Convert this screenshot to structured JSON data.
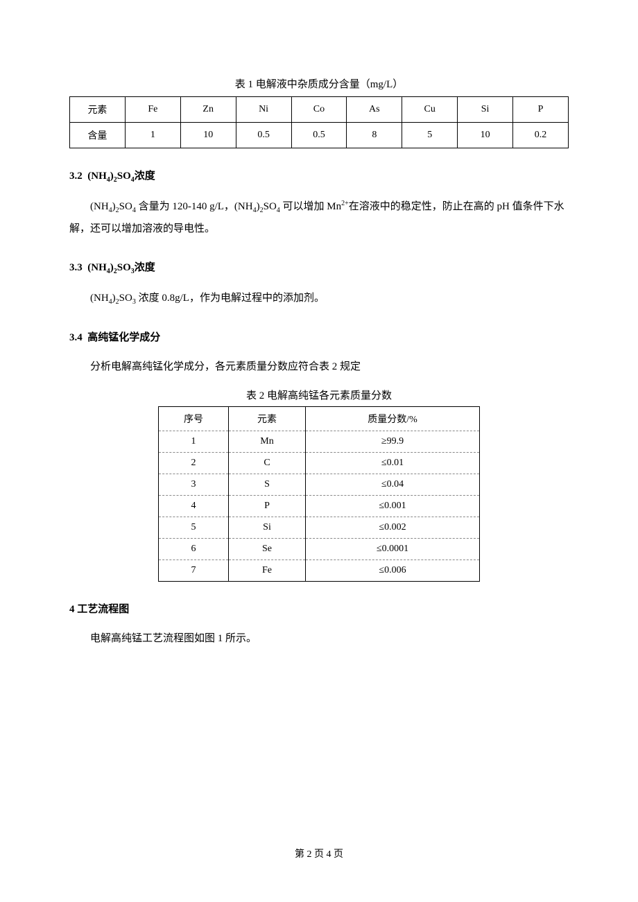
{
  "table1": {
    "caption_prefix": "表 ",
    "caption_num": "1",
    "caption_rest": " 电解液中杂质成分含量（mg/L）",
    "row_labels": [
      "元素",
      "含量"
    ],
    "cols": [
      "Fe",
      "Zn",
      "Ni",
      "Co",
      "As",
      "Cu",
      "Si",
      "P"
    ],
    "values": [
      "1",
      "10",
      "0.5",
      "0.5",
      "8",
      "5",
      "10",
      "0.2"
    ]
  },
  "sec32": {
    "num": "3.2",
    "title_html": "(NH<sub>4</sub>)<sub>2</sub>SO<sub>4</sub>浓度",
    "body_html": "(NH<sub>4</sub>)<sub>2</sub>SO<sub>4</sub> 含量为 120-140 g/L，(NH<sub>4</sub>)<sub>2</sub>SO<sub>4</sub> 可以增加 Mn<sup>2+</sup>在溶液中的稳定性，防止在高的 pH 值条件下水解，还可以增加溶液的导电性。"
  },
  "sec33": {
    "num": "3.3",
    "title_html": "(NH<sub>4</sub>)<sub>2</sub>SO<sub>3</sub>浓度",
    "body_html": "(NH<sub>4</sub>)<sub>2</sub>SO<sub>3</sub> 浓度  0.8g/L，作为电解过程中的添加剂。"
  },
  "sec34": {
    "num": "3.4",
    "title": "高纯锰化学成分",
    "body": "分析电解高纯锰化学成分，各元素质量分数应符合表 2 规定"
  },
  "table2": {
    "caption_prefix": "表 ",
    "caption_num": "2",
    "caption_rest": " 电解高纯锰各元素质量分数",
    "headers": [
      "序号",
      "元素",
      "质量分数/%"
    ],
    "rows": [
      {
        "n": "1",
        "el": "Mn",
        "val": "≥99.9"
      },
      {
        "n": "2",
        "el": "C",
        "val": "≤0.01"
      },
      {
        "n": "3",
        "el": "S",
        "val": "≤0.04"
      },
      {
        "n": "4",
        "el": "P",
        "val": "≤0.001"
      },
      {
        "n": "5",
        "el": "Si",
        "val": "≤0.002"
      },
      {
        "n": "6",
        "el": "Se",
        "val": "≤0.0001"
      },
      {
        "n": "7",
        "el": "Fe",
        "val": "≤0.006"
      }
    ]
  },
  "sec4": {
    "num": "4",
    "title": "工艺流程图",
    "body": "电解高纯锰工艺流程图如图 1 所示。"
  },
  "footer": {
    "prefix": "第 ",
    "page": "2",
    "mid": " 页 ",
    "total": "4",
    "suffix": " 页"
  }
}
